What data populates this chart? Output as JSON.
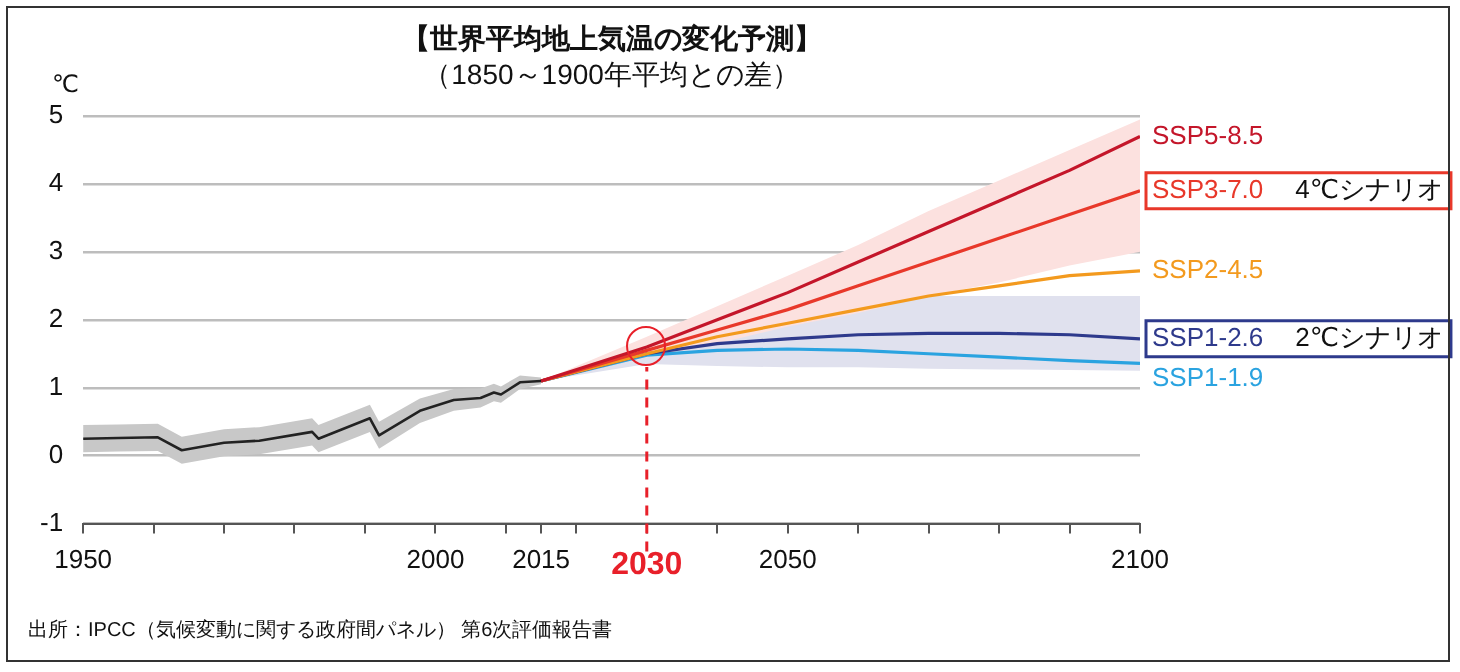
{
  "chart_data": {
    "type": "line",
    "title": "【世界平均地上気温の変化予測】",
    "subtitle": "（1850～1900年平均との差）",
    "ylabel": "℃",
    "xlim": [
      1950,
      2100
    ],
    "ylim": [
      -1,
      5
    ],
    "yticks": [
      -1,
      0,
      1,
      2,
      3,
      4,
      5
    ],
    "xticks": [
      1950,
      {
        "value": 1960,
        "label": null
      },
      {
        "value": 1970,
        "label": null
      },
      {
        "value": 1980,
        "label": null
      },
      {
        "value": 1990,
        "label": null
      },
      2000,
      {
        "value": 2010,
        "label": null
      },
      2015,
      {
        "value": 2020,
        "label": null
      },
      2030,
      {
        "value": 2040,
        "label": null
      },
      2050,
      {
        "value": 2060,
        "label": null
      },
      {
        "value": 2070,
        "label": null
      },
      {
        "value": 2080,
        "label": null
      },
      {
        "value": 2090,
        "label": null
      },
      2100
    ],
    "grid": "y",
    "legend": false,
    "marker": "none",
    "line_style": "solid",
    "series": [
      {
        "color": "#222222",
        "x": [
          1950,
          1955,
          1960.6,
          1964,
          1970,
          1975,
          1982.5,
          1983.4,
          1990.7,
          1992,
          1997.8,
          2002.6,
          2006.4,
          2008.3,
          2009.3,
          2012,
          2015
        ],
        "values": [
          0.25,
          0.26,
          0.27,
          0.08,
          0.19,
          0.22,
          0.35,
          0.25,
          0.55,
          0.3,
          0.66,
          0.82,
          0.85,
          0.93,
          0.9,
          1.08,
          1.1
        ],
        "lower": [
          0.05,
          0.06,
          0.07,
          -0.12,
          -0.01,
          0.02,
          0.15,
          0.05,
          0.35,
          0.1,
          0.48,
          0.66,
          0.71,
          0.8,
          0.78,
          0.98,
          1.05
        ],
        "upper": [
          0.45,
          0.46,
          0.47,
          0.28,
          0.39,
          0.42,
          0.55,
          0.45,
          0.75,
          0.5,
          0.84,
          0.98,
          0.99,
          1.06,
          1.02,
          1.18,
          1.15
        ]
      },
      {
        "name": "SSP5-8.5",
        "color": "#c4162a",
        "x": [
          2015,
          2030,
          2040,
          2050,
          2060,
          2070,
          2080,
          2090,
          2100
        ],
        "values": [
          1.1,
          1.6,
          2.0,
          2.4,
          2.85,
          3.3,
          3.75,
          4.2,
          4.7
        ]
      },
      {
        "name": "SSP3-7.0",
        "color": "#e8382a",
        "x": [
          2015,
          2030,
          2040,
          2050,
          2060,
          2070,
          2080,
          2090,
          2100
        ],
        "values": [
          1.1,
          1.55,
          1.85,
          2.15,
          2.5,
          2.85,
          3.2,
          3.55,
          3.9
        ],
        "lower": [
          1.1,
          1.45,
          1.65,
          1.9,
          2.1,
          2.35,
          2.55,
          2.8,
          3.0
        ],
        "upper": [
          1.1,
          1.75,
          2.2,
          2.65,
          3.1,
          3.6,
          4.05,
          4.5,
          4.95
        ]
      },
      {
        "name": "SSP2-4.5",
        "color": "#f39a1e",
        "x": [
          2015,
          2030,
          2040,
          2050,
          2060,
          2070,
          2080,
          2090,
          2100
        ],
        "values": [
          1.1,
          1.5,
          1.75,
          1.95,
          2.15,
          2.35,
          2.5,
          2.65,
          2.72
        ]
      },
      {
        "name": "SSP1-2.6",
        "color": "#2e3a8c",
        "x": [
          2015,
          2030,
          2040,
          2050,
          2060,
          2070,
          2080,
          2090,
          2100
        ],
        "values": [
          1.1,
          1.5,
          1.65,
          1.72,
          1.78,
          1.8,
          1.8,
          1.78,
          1.72
        ],
        "lower": [
          1.1,
          1.35,
          1.32,
          1.3,
          1.3,
          1.28,
          1.27,
          1.26,
          1.25
        ],
        "upper": [
          1.1,
          1.7,
          2.05,
          2.35,
          2.35,
          2.35,
          2.35,
          2.35,
          2.35
        ]
      },
      {
        "name": "SSP1-1.9",
        "color": "#2aa3e0",
        "x": [
          2015,
          2030,
          2040,
          2050,
          2060,
          2070,
          2080,
          2090,
          2100
        ],
        "values": [
          1.1,
          1.48,
          1.55,
          1.57,
          1.55,
          1.5,
          1.45,
          1.4,
          1.36
        ]
      }
    ],
    "ref_lines": [
      {
        "axis": "x",
        "value": 2030,
        "color": "#e8202a",
        "line_style": "dashed"
      }
    ],
    "annotations": [
      "4℃シナリオ",
      "2℃シナリオ",
      "出所：IPCC（気候変動に関する政府間パネル） 第6次評価報告書"
    ]
  }
}
